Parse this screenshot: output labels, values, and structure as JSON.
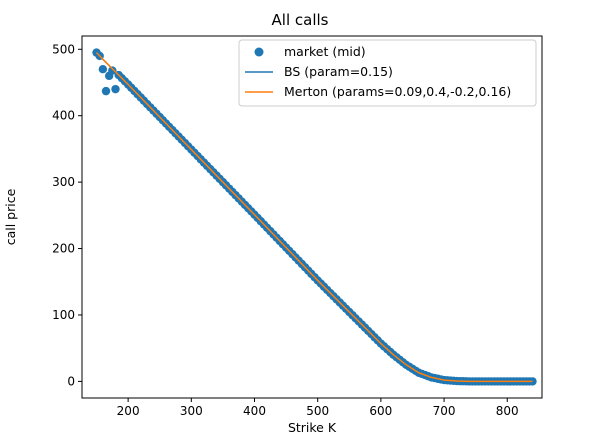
{
  "chart_data": {
    "type": "scatter",
    "title": "All calls",
    "xlabel": "Strike K",
    "ylabel": "call price",
    "xlim": [
      127,
      855
    ],
    "ylim": [
      -25,
      520
    ],
    "xticks": [
      200,
      300,
      400,
      500,
      600,
      700,
      800
    ],
    "yticks": [
      0,
      100,
      200,
      300,
      400,
      500
    ],
    "grid": false,
    "legend_position": "top-right",
    "series": [
      {
        "name": "market (mid)",
        "kind": "scatter",
        "color": "#1f77b4",
        "strike_range": [
          150,
          840
        ],
        "strike_step": 5,
        "outliers": [
          [
            160,
            470
          ],
          [
            165,
            437
          ],
          [
            170,
            460
          ],
          [
            175,
            468
          ],
          [
            180,
            440
          ]
        ],
        "curve": [
          [
            150,
            495
          ],
          [
            160,
            485
          ],
          [
            180,
            466
          ],
          [
            200,
            447
          ],
          [
            300,
            349
          ],
          [
            400,
            251
          ],
          [
            500,
            152
          ],
          [
            600,
            57
          ],
          [
            620,
            40
          ],
          [
            640,
            25
          ],
          [
            660,
            13
          ],
          [
            680,
            6
          ],
          [
            700,
            2
          ],
          [
            720,
            0.5
          ],
          [
            740,
            0
          ],
          [
            840,
            0
          ]
        ]
      },
      {
        "name": "BS (param=0.15)",
        "kind": "line",
        "color": "#1f77b4",
        "curve": [
          [
            150,
            495
          ],
          [
            160,
            485
          ],
          [
            180,
            466
          ],
          [
            200,
            447
          ],
          [
            300,
            349
          ],
          [
            400,
            251
          ],
          [
            500,
            152
          ],
          [
            600,
            57
          ],
          [
            620,
            40
          ],
          [
            640,
            25
          ],
          [
            660,
            13
          ],
          [
            680,
            6
          ],
          [
            700,
            2
          ],
          [
            720,
            0.5
          ],
          [
            740,
            0
          ],
          [
            840,
            0
          ]
        ]
      },
      {
        "name": "Merton (params=0.09,0.4,-0.2,0.16)",
        "kind": "line",
        "color": "#ff7f0e",
        "curve": [
          [
            150,
            495
          ],
          [
            160,
            485
          ],
          [
            180,
            466
          ],
          [
            200,
            447
          ],
          [
            300,
            349
          ],
          [
            400,
            251
          ],
          [
            500,
            152
          ],
          [
            600,
            57
          ],
          [
            620,
            40
          ],
          [
            640,
            25
          ],
          [
            660,
            13
          ],
          [
            680,
            6
          ],
          [
            700,
            2
          ],
          [
            720,
            0.5
          ],
          [
            740,
            0
          ],
          [
            840,
            0
          ]
        ]
      }
    ]
  }
}
